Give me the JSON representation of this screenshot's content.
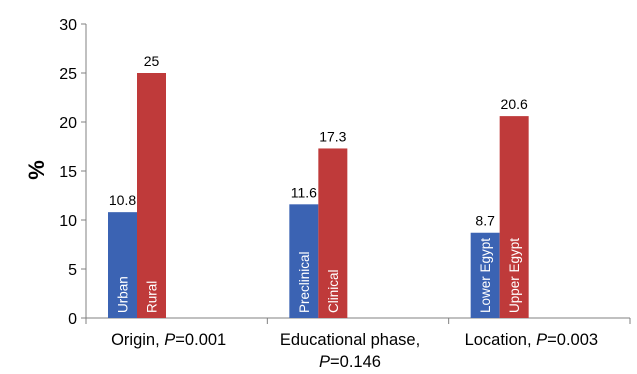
{
  "chart_data": {
    "type": "bar",
    "ylabel": "%",
    "ylim": [
      0,
      30
    ],
    "yticks": [
      0,
      5,
      10,
      15,
      20,
      25,
      30
    ],
    "groups": [
      {
        "label_parts": [
          [
            {
              "t": "Origin, ",
              "i": false
            },
            {
              "t": "P",
              "i": true
            },
            {
              "t": "=0.001",
              "i": false
            }
          ]
        ],
        "bars": [
          {
            "label": "Urban",
            "value": 10.8,
            "value_label": "10.8",
            "color": "#3b63b3"
          },
          {
            "label": "Rural",
            "value": 25,
            "value_label": "25",
            "color": "#bf3a3a"
          }
        ]
      },
      {
        "label_parts": [
          [
            {
              "t": "Educational phase,",
              "i": false
            }
          ],
          [
            {
              "t": "P",
              "i": true
            },
            {
              "t": "=0.146",
              "i": false
            }
          ]
        ],
        "bars": [
          {
            "label": "Preclinical",
            "value": 11.6,
            "value_label": "11.6",
            "color": "#3b63b3"
          },
          {
            "label": "Clinical",
            "value": 17.3,
            "value_label": "17.3",
            "color": "#bf3a3a"
          }
        ]
      },
      {
        "label_parts": [
          [
            {
              "t": "Location, ",
              "i": false
            },
            {
              "t": "P",
              "i": true
            },
            {
              "t": "=0.003",
              "i": false
            }
          ]
        ],
        "bars": [
          {
            "label": "Lower Egypt",
            "value": 8.7,
            "value_label": "8.7",
            "color": "#3b63b3"
          },
          {
            "label": "Upper Egypt",
            "value": 20.6,
            "value_label": "20.6",
            "color": "#bf3a3a"
          }
        ]
      }
    ],
    "grid": false,
    "legend": "none"
  }
}
